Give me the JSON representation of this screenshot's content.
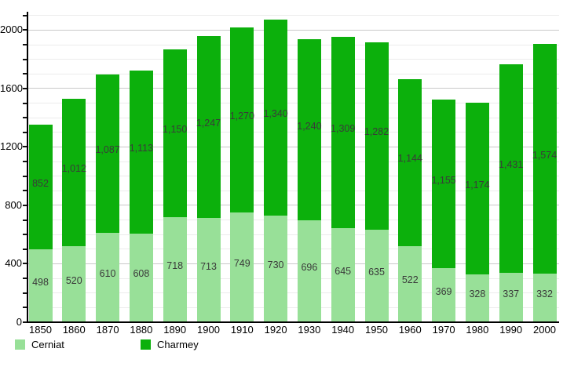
{
  "chart_data": {
    "type": "bar",
    "stacked": true,
    "title": "",
    "xlabel": "",
    "ylabel": "",
    "categories": [
      "1850",
      "1860",
      "1870",
      "1880",
      "1890",
      "1900",
      "1910",
      "1920",
      "1930",
      "1940",
      "1950",
      "1960",
      "1970",
      "1980",
      "1990",
      "2000"
    ],
    "series": [
      {
        "name": "Cerniat",
        "color": "#98e098",
        "values": [
          498,
          520,
          610,
          608,
          718,
          713,
          749,
          730,
          696,
          645,
          635,
          522,
          369,
          328,
          337,
          332
        ]
      },
      {
        "name": "Charmey",
        "color": "#0cb00c",
        "values": [
          852,
          1012,
          1087,
          1113,
          1150,
          1247,
          1270,
          1340,
          1240,
          1309,
          1282,
          1144,
          1155,
          1174,
          1431,
          1574
        ]
      }
    ],
    "ylim": [
      0,
      2100
    ],
    "y_major_ticks": [
      0,
      400,
      800,
      1200,
      1600,
      2000
    ],
    "y_minor_step": 100,
    "grid": true,
    "legend_position": "bottom-left",
    "value_labels": "inside-segments, thousands separated with comma"
  },
  "colors": {
    "grid_minor": "#ececec",
    "grid_major": "#c9c9c9",
    "axis": "#000000",
    "value_label": "#3a3a3a"
  }
}
